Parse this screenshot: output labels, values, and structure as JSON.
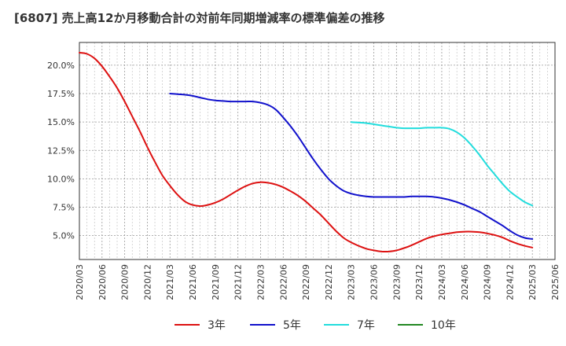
{
  "chart_data": {
    "type": "line",
    "title": "[6807]  売上高12か月移動合計の対前年同期増減率の標準偏差の推移",
    "xlabel": "",
    "ylabel": "",
    "ylim": [
      2.9,
      22.0
    ],
    "xlim": [
      "2020/03",
      "2025/06"
    ],
    "y_ticks": [
      5.0,
      7.5,
      10.0,
      12.5,
      15.0,
      17.5,
      20.0
    ],
    "y_tick_labels": [
      "5.0%",
      "7.5%",
      "10.0%",
      "12.5%",
      "15.0%",
      "17.5%",
      "20.0%"
    ],
    "x_tick_labels": [
      "2020/03",
      "2020/06",
      "2020/09",
      "2020/12",
      "2021/03",
      "2021/06",
      "2021/09",
      "2021/12",
      "2022/03",
      "2022/06",
      "2022/09",
      "2022/12",
      "2023/03",
      "2023/06",
      "2023/09",
      "2023/12",
      "2024/03",
      "2024/06",
      "2024/09",
      "2024/12",
      "2025/03",
      "2025/06"
    ],
    "grid": true,
    "legend_position": "bottom",
    "series": [
      {
        "name": "3年",
        "color": "#dd1111",
        "points": [
          [
            "2020/03",
            21.1
          ],
          [
            "2020/04",
            21.0
          ],
          [
            "2020/05",
            20.6
          ],
          [
            "2020/06",
            19.9
          ],
          [
            "2020/07",
            19.0
          ],
          [
            "2020/08",
            18.0
          ],
          [
            "2020/09",
            16.8
          ],
          [
            "2020/10",
            15.5
          ],
          [
            "2020/11",
            14.2
          ],
          [
            "2020/12",
            12.8
          ],
          [
            "2021/01",
            11.5
          ],
          [
            "2021/02",
            10.3
          ],
          [
            "2021/03",
            9.4
          ],
          [
            "2021/04",
            8.6
          ],
          [
            "2021/05",
            8.0
          ],
          [
            "2021/06",
            7.7
          ],
          [
            "2021/07",
            7.6
          ],
          [
            "2021/08",
            7.7
          ],
          [
            "2021/09",
            7.9
          ],
          [
            "2021/10",
            8.2
          ],
          [
            "2021/11",
            8.6
          ],
          [
            "2021/12",
            9.0
          ],
          [
            "2022/01",
            9.35
          ],
          [
            "2022/02",
            9.6
          ],
          [
            "2022/03",
            9.7
          ],
          [
            "2022/04",
            9.65
          ],
          [
            "2022/05",
            9.5
          ],
          [
            "2022/06",
            9.25
          ],
          [
            "2022/07",
            8.9
          ],
          [
            "2022/08",
            8.5
          ],
          [
            "2022/09",
            8.0
          ],
          [
            "2022/10",
            7.4
          ],
          [
            "2022/11",
            6.8
          ],
          [
            "2022/12",
            6.1
          ],
          [
            "2023/01",
            5.4
          ],
          [
            "2023/02",
            4.8
          ],
          [
            "2023/03",
            4.4
          ],
          [
            "2023/04",
            4.1
          ],
          [
            "2023/05",
            3.85
          ],
          [
            "2023/06",
            3.7
          ],
          [
            "2023/07",
            3.6
          ],
          [
            "2023/08",
            3.6
          ],
          [
            "2023/09",
            3.7
          ],
          [
            "2023/10",
            3.9
          ],
          [
            "2023/11",
            4.15
          ],
          [
            "2023/12",
            4.45
          ],
          [
            "2024/01",
            4.75
          ],
          [
            "2024/02",
            4.95
          ],
          [
            "2024/03",
            5.1
          ],
          [
            "2024/04",
            5.2
          ],
          [
            "2024/05",
            5.3
          ],
          [
            "2024/06",
            5.35
          ],
          [
            "2024/07",
            5.35
          ],
          [
            "2024/08",
            5.3
          ],
          [
            "2024/09",
            5.2
          ],
          [
            "2024/10",
            5.05
          ],
          [
            "2024/11",
            4.85
          ],
          [
            "2024/12",
            4.55
          ],
          [
            "2025/01",
            4.3
          ],
          [
            "2025/02",
            4.1
          ],
          [
            "2025/03",
            3.95
          ]
        ]
      },
      {
        "name": "5年",
        "color": "#1111cc",
        "points": [
          [
            "2021/03",
            17.5
          ],
          [
            "2021/04",
            17.45
          ],
          [
            "2021/05",
            17.4
          ],
          [
            "2021/06",
            17.3
          ],
          [
            "2021/07",
            17.15
          ],
          [
            "2021/08",
            17.0
          ],
          [
            "2021/09",
            16.9
          ],
          [
            "2021/10",
            16.85
          ],
          [
            "2021/11",
            16.8
          ],
          [
            "2021/12",
            16.8
          ],
          [
            "2022/01",
            16.8
          ],
          [
            "2022/02",
            16.8
          ],
          [
            "2022/03",
            16.7
          ],
          [
            "2022/04",
            16.5
          ],
          [
            "2022/05",
            16.1
          ],
          [
            "2022/06",
            15.4
          ],
          [
            "2022/07",
            14.6
          ],
          [
            "2022/08",
            13.7
          ],
          [
            "2022/09",
            12.7
          ],
          [
            "2022/10",
            11.7
          ],
          [
            "2022/11",
            10.8
          ],
          [
            "2022/12",
            10.0
          ],
          [
            "2023/01",
            9.4
          ],
          [
            "2023/02",
            8.95
          ],
          [
            "2023/03",
            8.7
          ],
          [
            "2023/04",
            8.55
          ],
          [
            "2023/05",
            8.45
          ],
          [
            "2023/06",
            8.4
          ],
          [
            "2023/07",
            8.4
          ],
          [
            "2023/08",
            8.4
          ],
          [
            "2023/09",
            8.4
          ],
          [
            "2023/10",
            8.4
          ],
          [
            "2023/11",
            8.45
          ],
          [
            "2023/12",
            8.45
          ],
          [
            "2024/01",
            8.45
          ],
          [
            "2024/02",
            8.4
          ],
          [
            "2024/03",
            8.3
          ],
          [
            "2024/04",
            8.15
          ],
          [
            "2024/05",
            7.95
          ],
          [
            "2024/06",
            7.7
          ],
          [
            "2024/07",
            7.4
          ],
          [
            "2024/08",
            7.1
          ],
          [
            "2024/09",
            6.7
          ],
          [
            "2024/10",
            6.3
          ],
          [
            "2024/11",
            5.9
          ],
          [
            "2024/12",
            5.45
          ],
          [
            "2025/01",
            5.05
          ],
          [
            "2025/02",
            4.8
          ],
          [
            "2025/03",
            4.7
          ]
        ]
      },
      {
        "name": "7年",
        "color": "#22dddd",
        "points": [
          [
            "2023/03",
            15.0
          ],
          [
            "2023/04",
            14.95
          ],
          [
            "2023/05",
            14.9
          ],
          [
            "2023/06",
            14.8
          ],
          [
            "2023/07",
            14.7
          ],
          [
            "2023/08",
            14.6
          ],
          [
            "2023/09",
            14.5
          ],
          [
            "2023/10",
            14.45
          ],
          [
            "2023/11",
            14.45
          ],
          [
            "2023/12",
            14.45
          ],
          [
            "2024/01",
            14.5
          ],
          [
            "2024/02",
            14.5
          ],
          [
            "2024/03",
            14.5
          ],
          [
            "2024/04",
            14.4
          ],
          [
            "2024/05",
            14.1
          ],
          [
            "2024/06",
            13.6
          ],
          [
            "2024/07",
            12.9
          ],
          [
            "2024/08",
            12.1
          ],
          [
            "2024/09",
            11.2
          ],
          [
            "2024/10",
            10.4
          ],
          [
            "2024/11",
            9.6
          ],
          [
            "2024/12",
            8.9
          ],
          [
            "2025/01",
            8.4
          ],
          [
            "2025/02",
            7.95
          ],
          [
            "2025/03",
            7.65
          ]
        ]
      },
      {
        "name": "10年",
        "color": "#228822",
        "points": []
      }
    ]
  }
}
